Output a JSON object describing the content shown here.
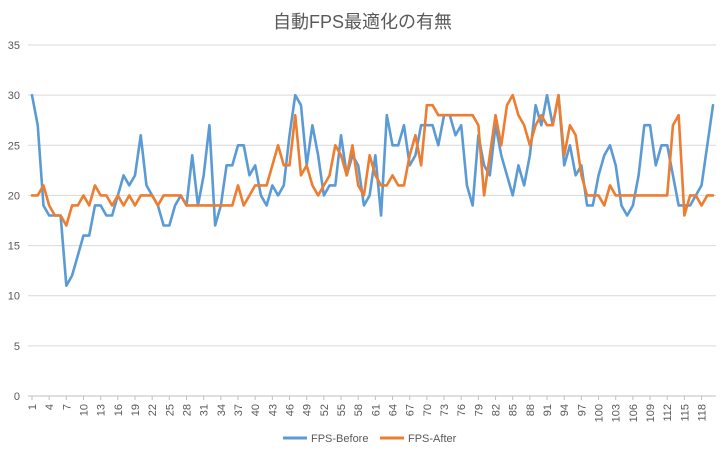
{
  "chart_data": {
    "type": "line",
    "title": "自動FPS最適化の有無",
    "xlabel": "",
    "ylabel": "",
    "ylim": [
      0,
      35
    ],
    "yticks": [
      0,
      5,
      10,
      15,
      20,
      25,
      30,
      35
    ],
    "x": [
      1,
      2,
      3,
      4,
      5,
      6,
      7,
      8,
      9,
      10,
      11,
      12,
      13,
      14,
      15,
      16,
      17,
      18,
      19,
      20,
      21,
      22,
      23,
      24,
      25,
      26,
      27,
      28,
      29,
      30,
      31,
      32,
      33,
      34,
      35,
      36,
      37,
      38,
      39,
      40,
      41,
      42,
      43,
      44,
      45,
      46,
      47,
      48,
      49,
      50,
      51,
      52,
      53,
      54,
      55,
      56,
      57,
      58,
      59,
      60,
      61,
      62,
      63,
      64,
      65,
      66,
      67,
      68,
      69,
      70,
      71,
      72,
      73,
      74,
      75,
      76,
      77,
      78,
      79,
      80,
      81,
      82,
      83,
      84,
      85,
      86,
      87,
      88,
      89,
      90,
      91,
      92,
      93,
      94,
      95,
      96,
      97,
      98,
      99,
      100,
      101,
      102,
      103,
      104,
      105,
      106,
      107,
      108,
      109,
      110,
      111,
      112,
      113,
      114,
      115,
      116,
      117,
      118,
      119,
      120
    ],
    "xticks": [
      "1",
      "4",
      "7",
      "10",
      "13",
      "16",
      "19",
      "22",
      "25",
      "28",
      "31",
      "34",
      "37",
      "40",
      "43",
      "46",
      "49",
      "52",
      "55",
      "58",
      "61",
      "64",
      "67",
      "70",
      "73",
      "76",
      "79",
      "82",
      "85",
      "88",
      "91",
      "94",
      "97",
      "100",
      "103",
      "106",
      "109",
      "112",
      "115",
      "118"
    ],
    "grid": true,
    "legend_position": "bottom",
    "series": [
      {
        "name": "FPS-Before",
        "color": "#5B9BD5",
        "values": [
          30,
          27,
          19,
          18,
          18,
          18,
          11,
          12,
          14,
          16,
          16,
          19,
          19,
          18,
          18,
          20,
          22,
          21,
          22,
          26,
          21,
          20,
          19,
          17,
          17,
          19,
          20,
          19,
          24,
          19,
          22,
          27,
          17,
          19,
          23,
          23,
          25,
          25,
          22,
          23,
          20,
          19,
          21,
          20,
          21,
          26,
          30,
          29,
          23,
          27,
          24,
          20,
          21,
          21,
          26,
          22,
          24,
          23,
          19,
          20,
          24,
          18,
          28,
          25,
          25,
          27,
          23,
          24,
          27,
          27,
          27,
          25,
          28,
          28,
          26,
          27,
          21,
          19,
          26,
          23,
          22,
          27,
          24,
          22,
          20,
          23,
          21,
          24,
          29,
          27,
          30,
          27,
          30,
          23,
          25,
          22,
          23,
          19,
          19,
          22,
          24,
          25,
          23,
          19,
          18,
          19,
          22,
          27,
          27,
          23,
          25,
          25,
          22,
          19,
          19,
          19,
          20,
          21,
          25,
          29
        ]
      },
      {
        "name": "FPS-After",
        "color": "#ED7D31",
        "values": [
          20,
          20,
          21,
          19,
          18,
          18,
          17,
          19,
          19,
          20,
          19,
          21,
          20,
          20,
          19,
          20,
          19,
          20,
          19,
          20,
          20,
          20,
          19,
          20,
          20,
          20,
          20,
          19,
          19,
          19,
          19,
          19,
          19,
          19,
          19,
          19,
          21,
          19,
          20,
          21,
          21,
          21,
          23,
          25,
          23,
          23,
          28,
          22,
          23,
          21,
          20,
          21,
          22,
          25,
          24,
          22,
          25,
          21,
          20,
          24,
          22,
          21,
          21,
          22,
          21,
          21,
          24,
          26,
          23,
          29,
          29,
          28,
          28,
          28,
          28,
          28,
          28,
          28,
          27,
          20,
          24,
          28,
          25,
          29,
          30,
          28,
          27,
          25,
          27,
          28,
          27,
          27,
          30,
          24,
          27,
          26,
          22,
          20,
          20,
          20,
          19,
          21,
          20,
          20,
          20,
          20,
          20,
          20,
          20,
          20,
          20,
          20,
          27,
          28,
          18,
          20,
          20,
          19,
          20,
          20
        ]
      }
    ]
  }
}
